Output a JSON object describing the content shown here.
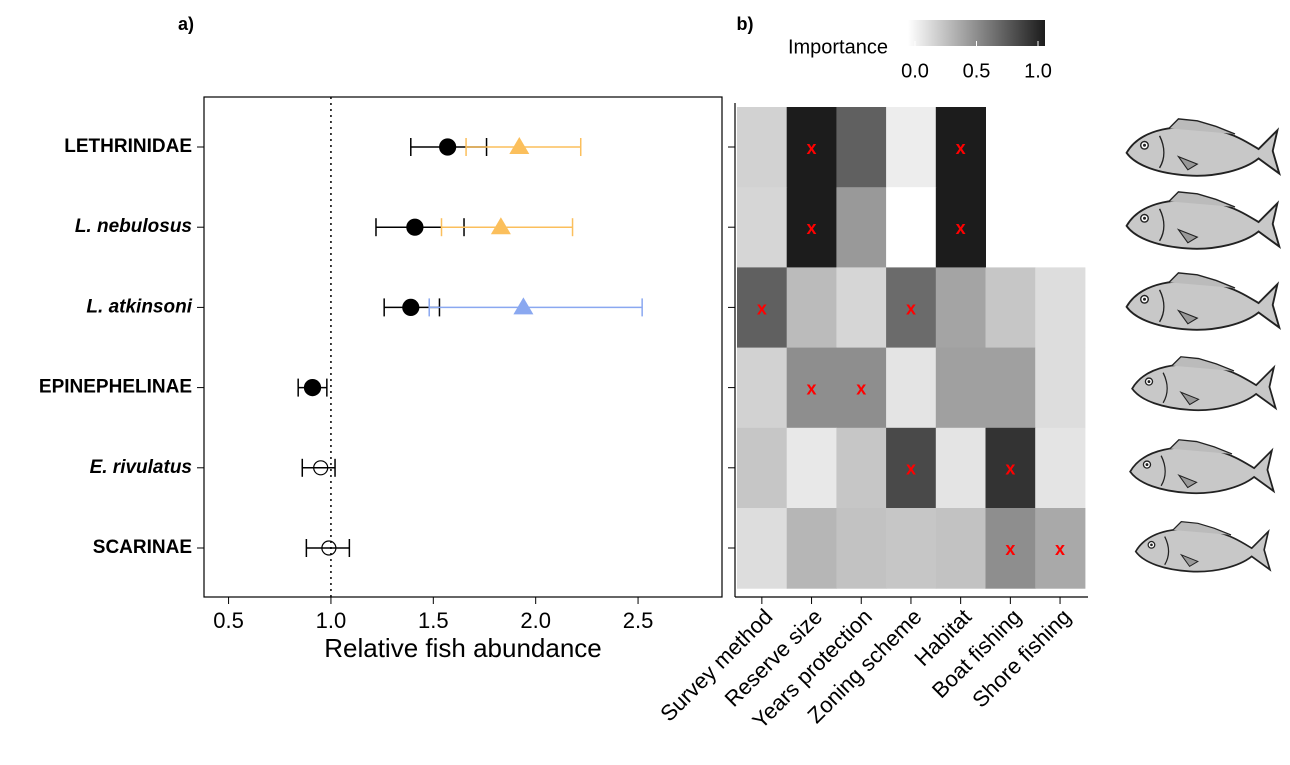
{
  "chart_data": [
    {
      "type": "forest",
      "panel_label": "a)",
      "x_label": "Relative fish abundance",
      "categories": [
        "LETHRINIDAE",
        "L. nebulosus",
        "L. atkinsoni",
        "EPINEPHELINAE",
        "E. rivulatus",
        "SCARINAE"
      ],
      "italic": [
        false,
        true,
        true,
        false,
        true,
        false
      ],
      "xlim": [
        0.38,
        2.91
      ],
      "xticks": [
        0.5,
        {
          "value": 1,
          "label": "1.0"
        },
        1.5,
        {
          "value": 2,
          "label": "2.0"
        },
        2.5
      ],
      "reference_line": 1,
      "series": [
        {
          "marker": "circle",
          "color": "#000000",
          "filled": [
            true,
            true,
            true,
            true,
            false,
            false
          ],
          "values": [
            1.57,
            1.41,
            1.39,
            0.91,
            0.95,
            0.99
          ],
          "lower": [
            1.39,
            1.22,
            1.26,
            0.84,
            0.86,
            0.88
          ],
          "upper": [
            1.76,
            1.65,
            1.53,
            0.98,
            1.02,
            1.09
          ]
        },
        {
          "marker": "triangle",
          "colors": [
            "#fbbf5c",
            "#fbbf5c",
            "#8aa8f0",
            null,
            null,
            null
          ],
          "values": [
            1.92,
            1.83,
            1.94,
            null,
            null,
            null
          ],
          "lower": [
            1.66,
            1.54,
            1.48,
            null,
            null,
            null
          ],
          "upper": [
            2.22,
            2.18,
            2.52,
            null,
            null,
            null
          ]
        }
      ]
    },
    {
      "type": "heatmap",
      "panel_label": "b)",
      "columns": [
        "Survey method",
        "Reserve size",
        "Years protection",
        "Zoning scheme",
        "Habitat",
        "Boat fishing",
        "Shore fishing"
      ],
      "values": [
        [
          0.2,
          1.0,
          0.7,
          0.08,
          1.0,
          null,
          null
        ],
        [
          0.18,
          1.0,
          0.45,
          0.0,
          1.0,
          null,
          null
        ],
        [
          0.7,
          0.3,
          0.18,
          0.65,
          0.4,
          0.25,
          0.15
        ],
        [
          0.2,
          0.5,
          0.5,
          0.12,
          0.42,
          0.42,
          0.15
        ],
        [
          0.25,
          0.1,
          0.25,
          0.8,
          0.12,
          0.9,
          0.12
        ],
        [
          0.15,
          0.32,
          0.27,
          0.25,
          0.27,
          0.5,
          0.38
        ]
      ],
      "significant": [
        [
          false,
          true,
          false,
          false,
          true,
          false,
          false
        ],
        [
          false,
          true,
          false,
          false,
          true,
          false,
          false
        ],
        [
          true,
          false,
          false,
          true,
          false,
          false,
          false
        ],
        [
          false,
          true,
          true,
          false,
          false,
          false,
          false
        ],
        [
          false,
          false,
          false,
          true,
          false,
          true,
          false
        ],
        [
          false,
          false,
          false,
          false,
          false,
          true,
          true
        ]
      ],
      "marker": "x",
      "marker_color": "#ff0000",
      "colorbar": {
        "label": "Importance",
        "lim": [
          0,
          1
        ],
        "ticks": [
          {
            "value": 0,
            "label": "0.0"
          },
          {
            "value": 0.5,
            "label": "0.5"
          },
          {
            "value": 1,
            "label": "1.0"
          }
        ],
        "colors": [
          "#ffffff",
          "#1c1c1c"
        ]
      }
    }
  ]
}
